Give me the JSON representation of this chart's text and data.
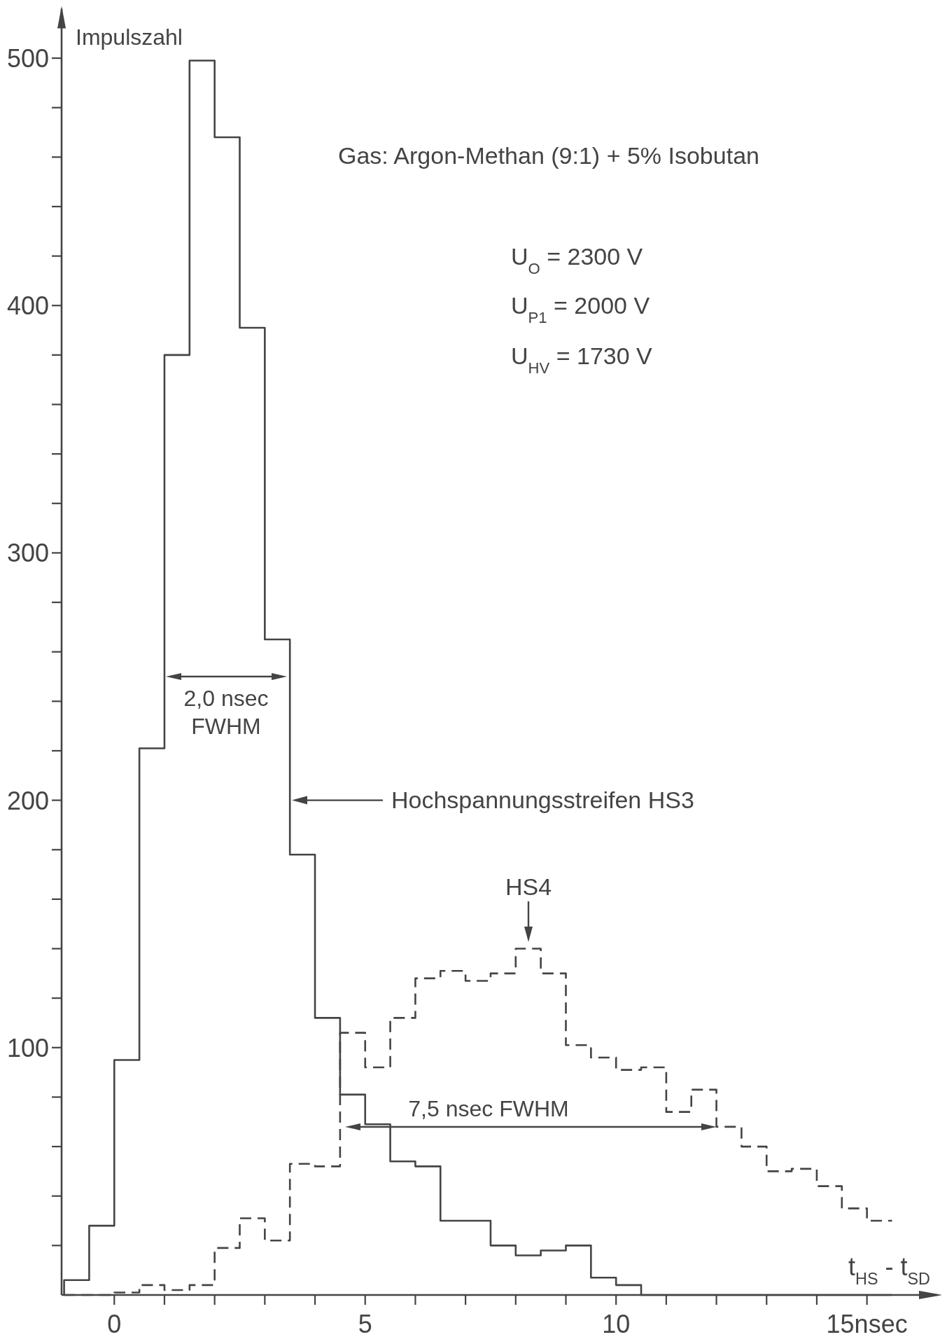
{
  "chart_data": {
    "type": "histogram",
    "ylabel": "Impulszahl",
    "xlabel": "t$_{HS}$ - t$_{SD}$",
    "bins": [
      -1,
      -0.5,
      0,
      0.5,
      1,
      1.5,
      2,
      2.5,
      3,
      3.5,
      4,
      4.5,
      5,
      5.5,
      6,
      6.5,
      7,
      7.5,
      8,
      8.5,
      9,
      9.5,
      10,
      10.5,
      11,
      11.5,
      12,
      12.5,
      13,
      13.5,
      14,
      14.5,
      15,
      15.5
    ],
    "series": [
      {
        "color": "#444444",
        "line_style": "solid",
        "values": [
          6,
          28,
          95,
          221,
          380,
          499,
          468,
          391,
          265,
          178,
          112,
          81,
          69,
          54,
          52,
          30,
          30,
          20,
          16,
          18,
          20,
          7,
          4,
          0,
          0,
          0,
          0,
          0,
          0,
          0,
          0,
          0,
          0
        ]
      },
      {
        "color": "#444444",
        "line_style": "dashed",
        "values": [
          0,
          0,
          1,
          4,
          2,
          4,
          19,
          31,
          22,
          53,
          52,
          106,
          92,
          112,
          128,
          131,
          127,
          130,
          140,
          130,
          101,
          96,
          91,
          92,
          74,
          83,
          68,
          60,
          50,
          51,
          44,
          35,
          30
        ]
      }
    ],
    "xlim": [
      -1.05,
      16.4
    ],
    "xticks": [
      0,
      {
        "value": 1,
        "label": null
      },
      {
        "value": 2,
        "label": null
      },
      {
        "value": 3,
        "label": null
      },
      {
        "value": 4,
        "label": null
      },
      5,
      {
        "value": 6,
        "label": null
      },
      {
        "value": 7,
        "label": null
      },
      {
        "value": 8,
        "label": null
      },
      {
        "value": 9,
        "label": null
      },
      10,
      {
        "value": 11,
        "label": null
      },
      {
        "value": 12,
        "label": null
      },
      {
        "value": 13,
        "label": null
      },
      {
        "value": 14,
        "label": null
      },
      {
        "value": 15,
        "label": "15nsec"
      }
    ],
    "ylim": [
      0,
      520
    ],
    "yticks": [
      {
        "value": 20,
        "label": null
      },
      {
        "value": 40,
        "label": null
      },
      {
        "value": 60,
        "label": null
      },
      {
        "value": 80,
        "label": null
      },
      100,
      {
        "value": 120,
        "label": null
      },
      {
        "value": 140,
        "label": null
      },
      {
        "value": 160,
        "label": null
      },
      {
        "value": 180,
        "label": null
      },
      200,
      {
        "value": 220,
        "label": null
      },
      {
        "value": 240,
        "label": null
      },
      {
        "value": 260,
        "label": null
      },
      {
        "value": 280,
        "label": null
      },
      300,
      {
        "value": 320,
        "label": null
      },
      {
        "value": 340,
        "label": null
      },
      {
        "value": 360,
        "label": null
      },
      {
        "value": 380,
        "label": null
      },
      400,
      {
        "value": 420,
        "label": null
      },
      {
        "value": 440,
        "label": null
      },
      {
        "value": 460,
        "label": null
      },
      {
        "value": 480,
        "label": null
      },
      500
    ],
    "grid": false,
    "annotations": [
      "Gas: Argon-Methan (9:1) + 5% Isobutan",
      "U$_{O}$ = 2300 V",
      "U$_{P1}$ = 2000 V",
      "U$_{HV}$ = 1730 V",
      "2,0 nsec\nFWHM",
      "Hochspannungsstreifen HS3",
      "HS4",
      "7,5 nsec FWHM"
    ]
  }
}
